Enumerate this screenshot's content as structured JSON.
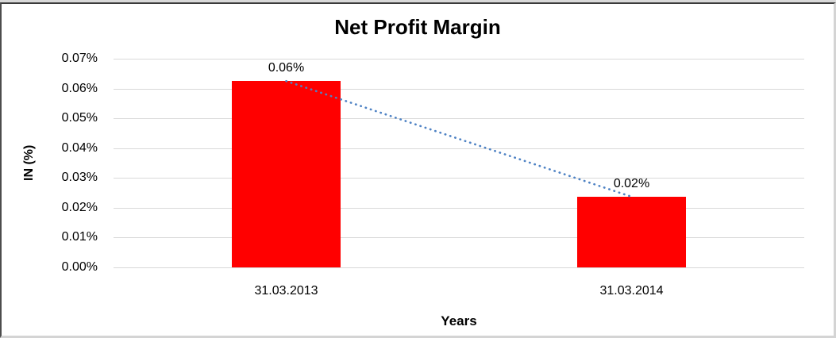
{
  "chart_data": {
    "type": "bar",
    "title": "Net Profit Margin",
    "xlabel": "Years",
    "ylabel": "IN (%)",
    "categories": [
      "31.03.2013",
      "31.03.2014"
    ],
    "series": [
      {
        "name": "Net Profit Margin",
        "values": [
          0.0625,
          0.0237
        ]
      }
    ],
    "data_labels": [
      "0.06%",
      "0.02%"
    ],
    "y_ticks": [
      "0.07%",
      "0.06%",
      "0.05%",
      "0.04%",
      "0.03%",
      "0.02%",
      "0.01%",
      "0.00%"
    ],
    "ylim": [
      0,
      0.07
    ],
    "tick_step": 0.01,
    "grid": true,
    "legend": "none",
    "bar_color": "#ff0000",
    "gridline_color": "#d9d9d9",
    "trendline": {
      "style": "dotted",
      "color": "#4e82c4",
      "from_value": 0.0625,
      "to_value": 0.0237
    }
  }
}
